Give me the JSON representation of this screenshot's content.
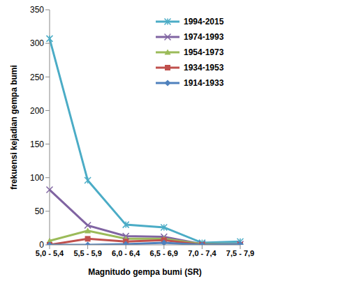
{
  "chart_data": {
    "type": "line",
    "x_label": "Magnitudo gempa bumi (SR)",
    "y_label": "frekuensi kejadian gempa bumi",
    "categories": [
      "5,0 - 5,4",
      "5,5 - 5,9",
      "6,0 - 6,4",
      "6,5 - 6,9",
      "7,0 - 7,4",
      "7,5 - 7,9"
    ],
    "series": [
      {
        "name": "1994-2015",
        "color": "#4bacc6",
        "marker": "star",
        "values": [
          307,
          96,
          30,
          26,
          3,
          5
        ]
      },
      {
        "name": "1974-1993",
        "color": "#8064a2",
        "marker": "x",
        "values": [
          82,
          29,
          13,
          12,
          1,
          1
        ]
      },
      {
        "name": "1954-1973",
        "color": "#9bbb59",
        "marker": "triangle",
        "values": [
          6,
          21,
          9,
          9,
          1,
          1
        ]
      },
      {
        "name": "1934-1953",
        "color": "#c0504d",
        "marker": "square",
        "values": [
          0,
          9,
          5,
          7,
          0,
          0
        ]
      },
      {
        "name": "1914-1933",
        "color": "#4f81bd",
        "marker": "diamond",
        "values": [
          0,
          0,
          1,
          3,
          0,
          1
        ]
      }
    ],
    "ylim": [
      0,
      350
    ],
    "yticks": [
      0,
      50,
      100,
      150,
      200,
      250,
      300,
      350
    ],
    "grid": false,
    "legend": "top-right"
  }
}
